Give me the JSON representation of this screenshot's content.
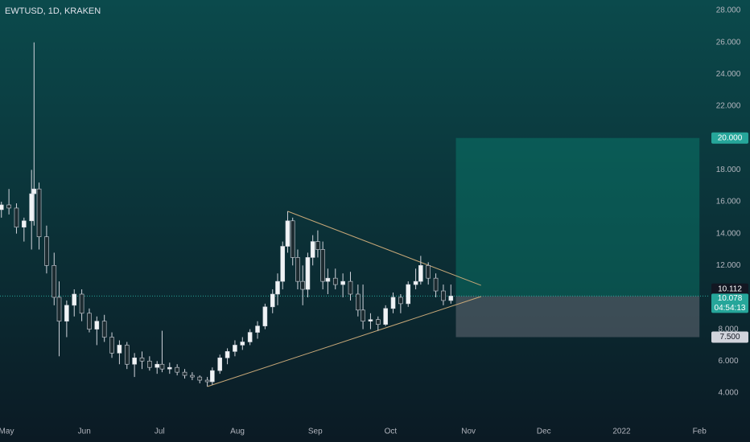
{
  "chart_data": {
    "type": "candlestick",
    "title": "EWTUSD, 1D, KRAKEN",
    "x": [
      -2,
      1,
      4,
      7,
      10,
      11,
      13,
      16,
      19,
      21,
      24,
      27,
      30,
      33,
      36,
      39,
      42,
      45,
      48,
      51,
      54,
      57,
      60,
      62,
      65,
      68,
      71,
      74,
      77,
      80,
      82,
      85,
      88,
      91,
      94,
      97,
      100,
      103,
      106,
      108,
      110,
      112,
      114,
      116,
      118,
      120,
      122,
      124,
      126,
      128,
      131,
      134,
      137,
      140,
      142,
      145,
      148,
      151,
      154,
      157,
      160,
      163,
      165,
      168,
      171,
      174,
      177
    ],
    "open": [
      15.5,
      15.8,
      15.6,
      14.4,
      14.8,
      16.5,
      16.8,
      13.8,
      12.0,
      10.0,
      8.5,
      9.5,
      10.2,
      9.0,
      8.0,
      8.5,
      7.5,
      6.5,
      7.0,
      5.8,
      6.2,
      6.0,
      5.6,
      5.8,
      5.5,
      5.6,
      5.3,
      5.1,
      5.0,
      4.8,
      4.7,
      5.4,
      6.2,
      6.6,
      7.0,
      7.2,
      7.8,
      8.2,
      9.4,
      10.2,
      11.0,
      13.2,
      14.8,
      12.5,
      11.0,
      10.5,
      12.5,
      13.5,
      13.0,
      11.0,
      11.2,
      10.8,
      11.0,
      10.2,
      9.2,
      8.5,
      8.6,
      8.3,
      9.3,
      10.0,
      9.6,
      10.8,
      11.0,
      12.0,
      11.2,
      10.4,
      9.8
    ],
    "high": [
      16.0,
      16.8,
      15.9,
      15.0,
      18.0,
      26.0,
      17.2,
      14.5,
      12.8,
      11.0,
      9.8,
      10.5,
      10.5,
      9.3,
      8.8,
      8.9,
      7.8,
      7.3,
      7.2,
      6.5,
      6.6,
      6.3,
      6.0,
      7.9,
      5.9,
      5.8,
      5.5,
      5.3,
      5.1,
      5.0,
      5.6,
      6.4,
      6.8,
      7.3,
      7.5,
      8.0,
      8.5,
      9.6,
      10.5,
      11.5,
      13.5,
      15.4,
      15.0,
      13.0,
      12.0,
      12.8,
      13.9,
      14.2,
      13.5,
      11.8,
      11.8,
      11.5,
      11.6,
      10.8,
      10.8,
      9.0,
      8.8,
      9.5,
      10.3,
      10.2,
      11.0,
      11.8,
      12.6,
      12.2,
      11.5,
      10.8,
      10.8
    ],
    "low": [
      15.0,
      15.2,
      14.0,
      13.5,
      13.0,
      14.5,
      13.0,
      11.5,
      9.5,
      6.3,
      7.5,
      8.8,
      8.5,
      7.8,
      7.0,
      7.2,
      6.2,
      5.8,
      5.5,
      5.0,
      5.5,
      5.4,
      5.2,
      5.3,
      5.2,
      5.1,
      4.9,
      4.8,
      4.6,
      4.4,
      4.5,
      5.2,
      5.8,
      6.3,
      6.7,
      7.0,
      7.4,
      8.0,
      9.0,
      9.5,
      10.5,
      12.8,
      12.0,
      10.5,
      9.5,
      10.0,
      12.0,
      12.5,
      10.5,
      10.2,
      10.5,
      10.0,
      9.8,
      8.8,
      8.0,
      8.0,
      7.9,
      8.2,
      9.0,
      9.0,
      9.4,
      10.5,
      10.8,
      10.8,
      10.0,
      9.5,
      9.6
    ],
    "close": [
      15.8,
      15.6,
      14.4,
      14.8,
      16.5,
      16.8,
      13.8,
      12.0,
      10.0,
      8.5,
      9.5,
      10.2,
      9.0,
      8.0,
      8.5,
      7.5,
      6.5,
      7.0,
      5.8,
      6.2,
      6.0,
      5.6,
      5.8,
      5.5,
      5.6,
      5.3,
      5.1,
      5.0,
      4.8,
      4.7,
      5.4,
      6.2,
      6.6,
      7.0,
      7.2,
      7.8,
      8.2,
      9.4,
      10.2,
      11.0,
      13.2,
      14.8,
      12.5,
      11.0,
      10.5,
      12.5,
      13.5,
      13.0,
      11.0,
      11.2,
      10.8,
      11.0,
      10.2,
      9.2,
      8.5,
      8.6,
      8.3,
      9.3,
      10.0,
      9.6,
      10.8,
      11.0,
      12.0,
      11.2,
      10.4,
      9.8,
      10.078
    ],
    "up_color": "#f0f3f5",
    "down_color": "#1c2b30",
    "xlim": [
      -2.56,
      280.1
    ],
    "ylim": [
      2.18,
      28.66
    ],
    "xticks": [
      {
        "value": 0,
        "label": "May"
      },
      {
        "value": 31,
        "label": "Jun"
      },
      {
        "value": 61,
        "label": "Jul"
      },
      {
        "value": 92,
        "label": "Aug"
      },
      {
        "value": 123,
        "label": "Sep"
      },
      {
        "value": 153,
        "label": "Oct"
      },
      {
        "value": 184,
        "label": "Nov"
      },
      {
        "value": 214,
        "label": "Dec"
      },
      {
        "value": 245,
        "label": "2022"
      },
      {
        "value": 276,
        "label": "Feb"
      }
    ],
    "yticks": [
      {
        "value": 4,
        "label": "4.000"
      },
      {
        "value": 6,
        "label": "6.000"
      },
      {
        "value": 8,
        "label": "8.000"
      },
      {
        "value": 12,
        "label": "12.000"
      },
      {
        "value": 14,
        "label": "14.000"
      },
      {
        "value": 16,
        "label": "16.000"
      },
      {
        "value": 18,
        "label": "18.000"
      },
      {
        "value": 22,
        "label": "22.000"
      },
      {
        "value": 24,
        "label": "24.000"
      },
      {
        "value": 26,
        "label": "26.000"
      },
      {
        "value": 28,
        "label": "28.000"
      }
    ],
    "trend_lines": [
      {
        "x": [
          112,
          189
        ],
        "y": [
          15.4,
          10.75
        ],
        "color": "#c8a878"
      },
      {
        "x": [
          80,
          189
        ],
        "y": [
          4.4,
          10.05
        ],
        "color": "#c8a878"
      }
    ],
    "position": {
      "start": 179,
      "end": 276,
      "target": {
        "value": 20,
        "label": "20.000"
      },
      "entry": {
        "value": 10.078,
        "label": "10.078"
      },
      "stop": {
        "value": 7.5,
        "label": "7.500"
      }
    },
    "crosshair_price": {
      "value": 10.112,
      "label": "10.112"
    },
    "countdown": "04:54:13"
  }
}
